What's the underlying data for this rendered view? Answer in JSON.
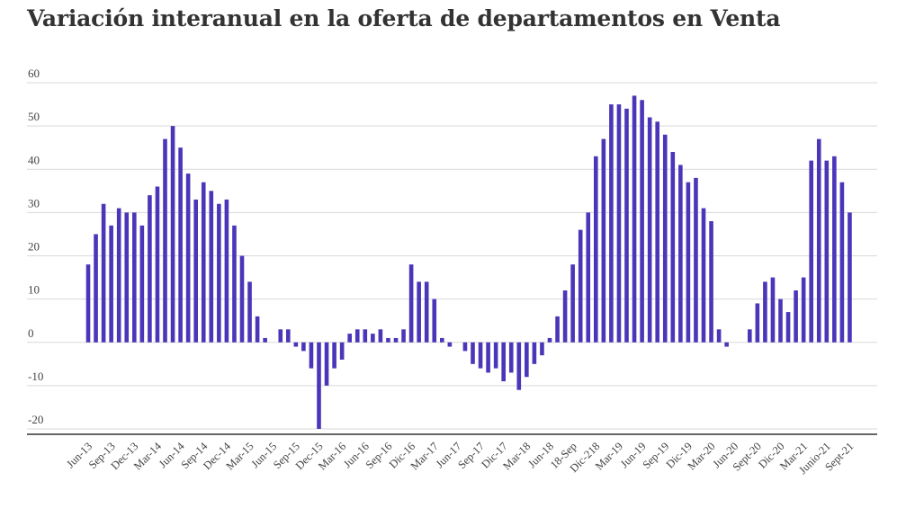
{
  "chart_data": {
    "type": "bar",
    "title": "Variación interanual en la oferta de departamentos en Venta",
    "xlabel": "",
    "ylabel": "",
    "ylim": [
      -20,
      60
    ],
    "yticks": [
      -20,
      -10,
      0,
      10,
      20,
      30,
      40,
      50,
      60
    ],
    "grid": true,
    "bar_color": "#4a36b8",
    "values": [
      18,
      25,
      32,
      27,
      31,
      30,
      30,
      27,
      34,
      36,
      47,
      50,
      45,
      39,
      33,
      37,
      35,
      32,
      33,
      27,
      20,
      14,
      6,
      1,
      0,
      3,
      3,
      -1,
      -2,
      -6,
      -20,
      -10,
      -6,
      -4,
      2,
      3,
      3,
      2,
      3,
      1,
      1,
      3,
      18,
      14,
      14,
      10,
      1,
      -1,
      0,
      -2,
      -5,
      -6,
      -7,
      -6,
      -9,
      -7,
      -11,
      -8,
      -5,
      -3,
      1,
      6,
      12,
      18,
      26,
      30,
      43,
      47,
      55,
      55,
      54,
      57,
      56,
      52,
      51,
      48,
      44,
      41,
      37,
      38,
      31,
      28,
      3,
      -1,
      0,
      0,
      3,
      9,
      14,
      15,
      10,
      7,
      12,
      15,
      42,
      47,
      42,
      43,
      37,
      30
    ],
    "x_tick_labels": [
      {
        "index": 0,
        "label": "Jun-13"
      },
      {
        "index": 3,
        "label": "Sep-13"
      },
      {
        "index": 6,
        "label": "Dec-13"
      },
      {
        "index": 9,
        "label": "Mar-14"
      },
      {
        "index": 12,
        "label": "Jun-14"
      },
      {
        "index": 15,
        "label": "Sep-14"
      },
      {
        "index": 18,
        "label": "Dec-14"
      },
      {
        "index": 21,
        "label": "Mar-15"
      },
      {
        "index": 24,
        "label": "Jun-15"
      },
      {
        "index": 27,
        "label": "Sep-15"
      },
      {
        "index": 30,
        "label": "Dec-15"
      },
      {
        "index": 33,
        "label": "Mar-16"
      },
      {
        "index": 36,
        "label": "Jun-16"
      },
      {
        "index": 39,
        "label": "Sep-16"
      },
      {
        "index": 42,
        "label": "Dic-16"
      },
      {
        "index": 45,
        "label": "Mar-17"
      },
      {
        "index": 48,
        "label": "Jun-17"
      },
      {
        "index": 51,
        "label": "Sep-17"
      },
      {
        "index": 54,
        "label": "Dic-17"
      },
      {
        "index": 57,
        "label": "Mar-18"
      },
      {
        "index": 60,
        "label": "Jun-18"
      },
      {
        "index": 63,
        "label": "18-Sep"
      },
      {
        "index": 66,
        "label": "Dic-218"
      },
      {
        "index": 69,
        "label": "Mar-19"
      },
      {
        "index": 72,
        "label": "Jun-19"
      },
      {
        "index": 75,
        "label": "Sep-19"
      },
      {
        "index": 78,
        "label": "Dic-19"
      },
      {
        "index": 81,
        "label": "Mar-20"
      },
      {
        "index": 84,
        "label": "Jun-20"
      },
      {
        "index": 87,
        "label": "Sept-20"
      },
      {
        "index": 90,
        "label": "Dic-20"
      },
      {
        "index": 93,
        "label": "Mar-21"
      },
      {
        "index": 96,
        "label": "Junio-21"
      },
      {
        "index": 99,
        "label": "Sept-21"
      }
    ]
  }
}
